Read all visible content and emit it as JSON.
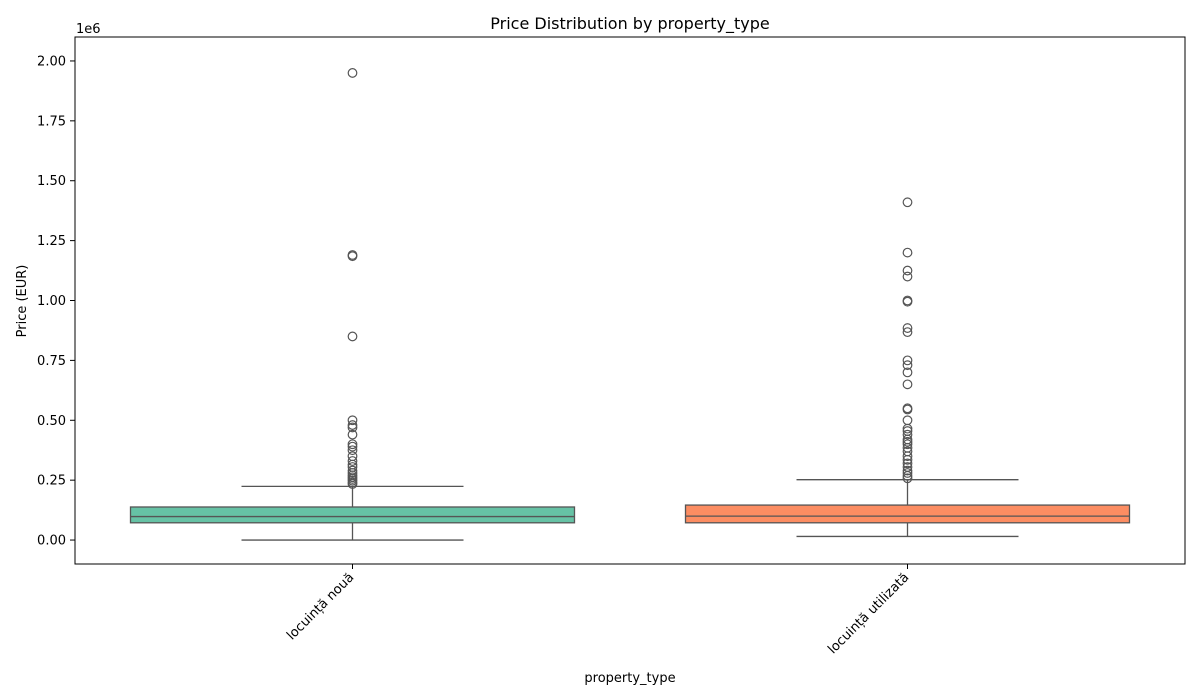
{
  "chart_data": {
    "type": "box",
    "title": "Price Distribution by property_type",
    "xlabel": "property_type",
    "ylabel": "Price (EUR)",
    "y_scale_label": "1e6",
    "y_scale_factor": 1000000,
    "ylim": [
      -100000,
      2100000
    ],
    "yticks": [
      0,
      250000,
      500000,
      750000,
      1000000,
      1250000,
      1500000,
      1750000,
      2000000
    ],
    "ytick_labels": [
      "0.00",
      "0.25",
      "0.50",
      "0.75",
      "1.00",
      "1.25",
      "1.50",
      "1.75",
      "2.00"
    ],
    "grid": false,
    "legend": "none",
    "categories": [
      "locuință nouă",
      "locuință utilizată"
    ],
    "boxes": [
      {
        "category": "locuință nouă",
        "color": "#66c2a5",
        "whisker_low": 0,
        "q1": 72000,
        "median": 98000,
        "q3": 138000,
        "whisker_high": 224000,
        "outliers": [
          1950000,
          1190000,
          1185000,
          850000,
          500000,
          480000,
          470000,
          440000,
          400000,
          390000,
          375000,
          350000,
          330000,
          315000,
          305000,
          290000,
          280000,
          270000,
          262000,
          255000,
          248000,
          240000,
          234000
        ]
      },
      {
        "category": "locuință utilizată",
        "color": "#fc8d62",
        "whisker_low": 15000,
        "q1": 72000,
        "median": 100000,
        "q3": 146000,
        "whisker_high": 252000,
        "outliers": [
          1410000,
          1200000,
          1125000,
          1100000,
          1000000,
          995000,
          885000,
          868000,
          750000,
          730000,
          700000,
          650000,
          550000,
          545000,
          500000,
          465000,
          455000,
          440000,
          420000,
          410000,
          400000,
          385000,
          370000,
          350000,
          335000,
          320000,
          305000,
          290000,
          280000,
          268000,
          258000
        ]
      }
    ]
  }
}
